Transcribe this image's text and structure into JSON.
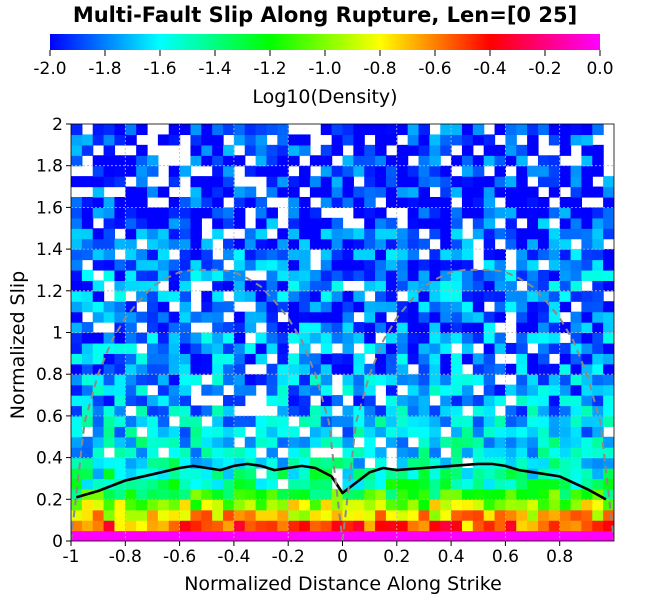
{
  "chart_data": {
    "type": "heatmap",
    "title": "Multi-Fault Slip Along Rupture, Len=[0 25]",
    "xlabel": "Normalized Distance Along Strike",
    "ylabel": "Normalized Slip",
    "colorbar_label": "Log10(Density)",
    "colorbar_range": [
      -2.0,
      0.0
    ],
    "colorbar_ticks": [
      "-2.0",
      "-1.8",
      "-1.6",
      "-1.4",
      "-1.2",
      "-1.0",
      "-0.8",
      "-0.6",
      "-0.4",
      "-0.2",
      "0.0"
    ],
    "colorbar_colors": [
      "#0000ff",
      "#00ffff",
      "#00ff00",
      "#ffff00",
      "#ff0000",
      "#ff00ff"
    ],
    "xlim": [
      -1,
      1
    ],
    "ylim": [
      0,
      2
    ],
    "xticks": [
      "-1",
      "-0.8",
      "-0.6",
      "-0.4",
      "-0.2",
      "0",
      "0.2",
      "0.4",
      "0.6",
      "0.8"
    ],
    "xtick_values": [
      -1,
      -0.8,
      -0.6,
      -0.4,
      -0.2,
      0,
      0.2,
      0.4,
      0.6,
      0.8
    ],
    "yticks": [
      "0",
      "0.2",
      "0.4",
      "0.6",
      "0.8",
      "1",
      "1.2",
      "1.4",
      "1.6",
      "1.8",
      "2"
    ],
    "ytick_values": [
      0,
      0.2,
      0.4,
      0.6,
      0.8,
      1,
      1.2,
      1.4,
      1.6,
      1.8,
      2
    ],
    "grid": true,
    "grid_x": [
      -0.8,
      -0.6,
      -0.4,
      -0.2,
      0.2,
      0.4,
      0.6,
      0.8
    ],
    "grid_y": [
      0.2,
      0.4,
      0.6,
      0.8,
      1.0,
      1.2,
      1.4,
      1.6,
      1.8
    ],
    "heatmap": {
      "x_bins": 50,
      "x_range": [
        -1,
        1
      ],
      "y_bin_edges": [
        0,
        0.05,
        0.1,
        0.15,
        0.2,
        0.25,
        0.3,
        0.35,
        0.4,
        0.45,
        0.5,
        0.55,
        0.6,
        0.65,
        0.7,
        0.75,
        0.8,
        0.85,
        0.9,
        0.95,
        1.0,
        1.05,
        1.1,
        1.15,
        1.2,
        1.25,
        1.3,
        1.35,
        1.4,
        1.45,
        1.5,
        1.55,
        1.6,
        1.65,
        1.7,
        1.75,
        1.8,
        1.85,
        1.9,
        1.95,
        2.0
      ],
      "row_mean_log10_density": [
        0.0,
        -0.55,
        -0.75,
        -0.95,
        -1.2,
        -1.4,
        -1.5,
        -1.55,
        -1.6,
        -1.6,
        -1.65,
        -1.65,
        -1.7,
        -1.75,
        -1.75,
        -1.75,
        -1.8,
        -1.8,
        -1.8,
        -1.8,
        -1.85,
        -1.85,
        -1.85,
        -1.8,
        -1.8,
        -1.8,
        -1.85,
        -1.85,
        -1.9,
        -1.9,
        -1.9,
        -1.95,
        -1.95,
        -1.95,
        -1.95,
        -1.95,
        -1.95,
        -1.95,
        -1.95,
        -1.95
      ],
      "empty_cell_fraction_by_row": [
        0,
        0,
        0,
        0,
        0,
        0.02,
        0.04,
        0.06,
        0.08,
        0.1,
        0.1,
        0.12,
        0.12,
        0.12,
        0.12,
        0.12,
        0.12,
        0.12,
        0.14,
        0.14,
        0.14,
        0.14,
        0.14,
        0.12,
        0.1,
        0.1,
        0.12,
        0.14,
        0.16,
        0.18,
        0.2,
        0.22,
        0.22,
        0.24,
        0.24,
        0.26,
        0.26,
        0.28,
        0.28,
        0.3
      ]
    },
    "series": [
      {
        "style": "solid-black",
        "x": [
          -0.98,
          -0.9,
          -0.8,
          -0.7,
          -0.6,
          -0.55,
          -0.5,
          -0.45,
          -0.4,
          -0.35,
          -0.3,
          -0.25,
          -0.2,
          -0.15,
          -0.1,
          -0.04,
          0.0,
          0.05,
          0.1,
          0.15,
          0.2,
          0.3,
          0.4,
          0.5,
          0.55,
          0.6,
          0.65,
          0.7,
          0.8,
          0.9,
          0.97
        ],
        "y": [
          0.21,
          0.24,
          0.29,
          0.32,
          0.35,
          0.36,
          0.35,
          0.34,
          0.36,
          0.37,
          0.36,
          0.34,
          0.35,
          0.36,
          0.35,
          0.31,
          0.23,
          0.28,
          0.33,
          0.35,
          0.34,
          0.35,
          0.36,
          0.37,
          0.37,
          0.36,
          0.34,
          0.33,
          0.31,
          0.25,
          0.2
        ]
      },
      {
        "style": "dashed-gray",
        "x": [
          -1.0,
          -0.95,
          -0.9,
          -0.85,
          -0.8,
          -0.75,
          -0.7,
          -0.65,
          -0.6,
          -0.55,
          -0.5,
          -0.45,
          -0.4,
          -0.35,
          -0.3,
          -0.25,
          -0.2,
          -0.15,
          -0.1,
          -0.05,
          0.0
        ],
        "y": [
          0.0,
          0.57,
          0.8,
          0.96,
          1.07,
          1.15,
          1.22,
          1.26,
          1.29,
          1.3,
          1.3,
          1.3,
          1.29,
          1.26,
          1.22,
          1.15,
          1.07,
          0.96,
          0.8,
          0.57,
          0.0
        ]
      },
      {
        "style": "dashed-gray",
        "x": [
          0.0,
          0.05,
          0.1,
          0.15,
          0.2,
          0.25,
          0.3,
          0.35,
          0.4,
          0.45,
          0.5,
          0.55,
          0.6,
          0.65,
          0.7,
          0.75,
          0.8,
          0.85,
          0.9,
          0.95,
          1.0
        ],
        "y": [
          0.0,
          0.57,
          0.8,
          0.96,
          1.07,
          1.15,
          1.22,
          1.26,
          1.29,
          1.3,
          1.3,
          1.3,
          1.29,
          1.26,
          1.22,
          1.15,
          1.07,
          0.96,
          0.8,
          0.57,
          0.0
        ]
      }
    ]
  }
}
